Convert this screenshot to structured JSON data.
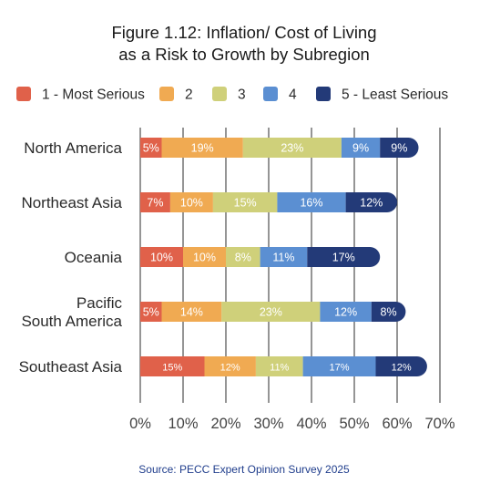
{
  "chart_data": {
    "type": "bar",
    "orientation": "horizontal",
    "stacked": true,
    "title_lines": [
      "Figure 1.12: Inflation/ Cost of Living",
      "as a Risk to Growth by Subregion"
    ],
    "categories": [
      {
        "lines": [
          "North America"
        ]
      },
      {
        "lines": [
          "Northeast Asia"
        ]
      },
      {
        "lines": [
          "Oceania"
        ]
      },
      {
        "lines": [
          "Pacific",
          "South America"
        ]
      },
      {
        "lines": [
          "Southeast Asia"
        ]
      }
    ],
    "series": [
      {
        "name": "1 - Most Serious",
        "color": "#e0614a",
        "values": [
          5,
          7,
          10,
          5,
          15
        ],
        "labels": [
          "5%",
          "7%",
          "10%",
          "5%",
          "15%"
        ]
      },
      {
        "name": "2",
        "color": "#f0aa52",
        "values": [
          19,
          10,
          10,
          14,
          12
        ],
        "labels": [
          "19%",
          "10%",
          "10%",
          "14%",
          "12%"
        ]
      },
      {
        "name": "3",
        "color": "#cfd07a",
        "values": [
          23,
          15,
          8,
          23,
          11
        ],
        "labels": [
          "23%",
          "15%",
          "8%",
          "23%",
          "11%"
        ]
      },
      {
        "name": "4",
        "color": "#5b8fd2",
        "values": [
          9,
          16,
          11,
          12,
          17
        ],
        "labels": [
          "9%",
          "16%",
          "11%",
          "12%",
          "17%"
        ]
      },
      {
        "name": "5 - Least Serious",
        "color": "#233a78",
        "values": [
          9,
          12,
          17,
          8,
          12
        ],
        "labels": [
          "9%",
          "12%",
          "17%",
          "8%",
          "12%"
        ]
      }
    ],
    "x_ticks": [
      "0%",
      "10%",
      "20%",
      "30%",
      "40%",
      "50%",
      "60%",
      "70%"
    ],
    "xlim": [
      0,
      70
    ],
    "grid": "vertical",
    "legend_position": "top",
    "small_label_categories": [
      4
    ],
    "source": "Source: PECC Expert Opinion Survey 2025"
  }
}
